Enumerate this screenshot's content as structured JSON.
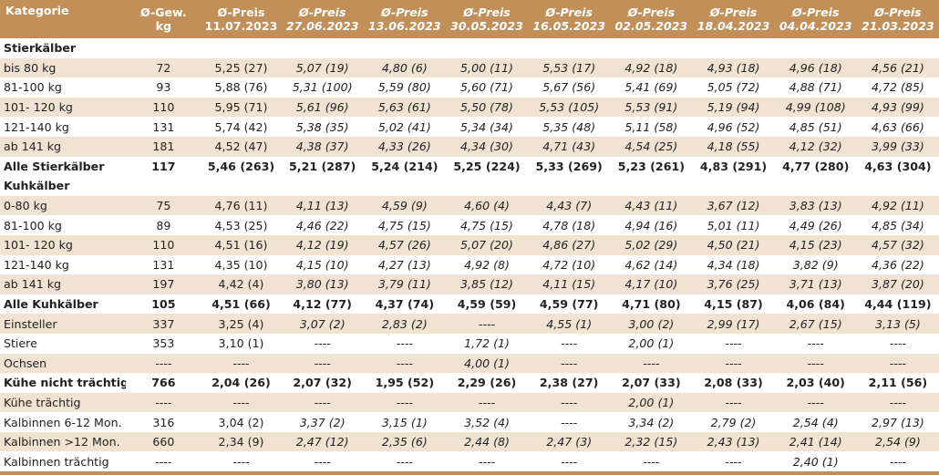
{
  "header": {
    "category": "Kategorie",
    "weight_line1": "Ø-Gew.",
    "weight_line2": "kg",
    "price_label": "Ø-Preis",
    "dates": [
      "11.07.2023",
      "27.06.2023",
      "13.06.2023",
      "30.05.2023",
      "16.05.2023",
      "02.05.2023",
      "18.04.2023",
      "04.04.2023",
      "21.03.2023"
    ]
  },
  "sections": [
    {
      "title": "Stierkälber",
      "rows": [
        {
          "label": "bis 80 kg",
          "weight": "72",
          "prices": [
            "5,25 (27)",
            "5,07 (19)",
            "4,80 (6)",
            "5,00 (11)",
            "5,53 (17)",
            "4,92 (18)",
            "4,93 (18)",
            "4,96 (18)",
            "4,56 (21)"
          ]
        },
        {
          "label": "81-100 kg",
          "weight": "93",
          "prices": [
            "5,88 (76)",
            "5,31 (100)",
            "5,59 (80)",
            "5,60 (71)",
            "5,67 (56)",
            "5,41 (69)",
            "5,05 (72)",
            "4,88 (71)",
            "4,72 (85)"
          ]
        },
        {
          "label": "101- 120 kg",
          "weight": "110",
          "prices": [
            "5,95 (71)",
            "5,61 (96)",
            "5,63 (61)",
            "5,50 (78)",
            "5,53 (105)",
            "5,53 (91)",
            "5,19 (94)",
            "4,99 (108)",
            "4,93 (99)"
          ]
        },
        {
          "label": "121-140 kg",
          "weight": "131",
          "prices": [
            "5,74 (42)",
            "5,38 (35)",
            "5,02 (41)",
            "5,34 (34)",
            "5,35 (48)",
            "5,11 (58)",
            "4,96 (52)",
            "4,85 (51)",
            "4,63 (66)"
          ]
        },
        {
          "label": "ab 141 kg",
          "weight": "181",
          "prices": [
            "4,52 (47)",
            "4,38 (37)",
            "4,33 (26)",
            "4,34 (30)",
            "4,71 (43)",
            "4,54 (25)",
            "4,18 (55)",
            "4,12 (32)",
            "3,99 (33)"
          ]
        }
      ],
      "total": {
        "label": "Alle Stierkälber",
        "weight": "117",
        "prices": [
          "5,46 (263)",
          "5,21 (287)",
          "5,24 (214)",
          "5,25 (224)",
          "5,33 (269)",
          "5,23 (261)",
          "4,83 (291)",
          "4,77 (280)",
          "4,63 (304)"
        ]
      }
    },
    {
      "title": "Kuhkälber",
      "rows": [
        {
          "label": "0-80 kg",
          "weight": "75",
          "prices": [
            "4,76 (11)",
            "4,11 (13)",
            "4,59 (9)",
            "4,60 (4)",
            "4,43 (7)",
            "4,43 (11)",
            "3,67 (12)",
            "3,83 (13)",
            "4,92 (11)"
          ]
        },
        {
          "label": "81-100 kg",
          "weight": "89",
          "prices": [
            "4,53 (25)",
            "4,46 (22)",
            "4,75 (15)",
            "4,75 (15)",
            "4,78 (18)",
            "4,94 (16)",
            "5,01 (11)",
            "4,49 (26)",
            "4,85 (34)"
          ]
        },
        {
          "label": "101- 120 kg",
          "weight": "110",
          "prices": [
            "4,51 (16)",
            "4,12 (19)",
            "4,57 (26)",
            "5,07 (20)",
            "4,86 (27)",
            "5,02 (29)",
            "4,50 (21)",
            "4,15 (23)",
            "4,57 (32)"
          ]
        },
        {
          "label": "121-140 kg",
          "weight": "131",
          "prices": [
            "4,35 (10)",
            "4,15 (10)",
            "4,27 (13)",
            "4,92 (8)",
            "4,72 (10)",
            "4,62 (14)",
            "4,34 (18)",
            "3,82 (9)",
            "4,36 (22)"
          ]
        },
        {
          "label": "ab 141 kg",
          "weight": "197",
          "prices": [
            "4,42 (4)",
            "3,80 (13)",
            "3,79 (11)",
            "3,85 (12)",
            "4,11 (15)",
            "4,17 (10)",
            "3,76 (25)",
            "3,71 (13)",
            "3,87 (20)"
          ]
        }
      ],
      "total": {
        "label": "Alle Kuhkälber",
        "weight": "105",
        "prices": [
          "4,51 (66)",
          "4,12 (77)",
          "4,37 (74)",
          "4,59 (59)",
          "4,59 (77)",
          "4,71 (80)",
          "4,15 (87)",
          "4,06 (84)",
          "4,44 (119)"
        ]
      }
    }
  ],
  "other_rows": [
    {
      "label": "Einsteller",
      "weight": "337",
      "bold": false,
      "prices": [
        "3,25 (4)",
        "3,07 (2)",
        "2,83 (2)",
        "----",
        "4,55 (1)",
        "3,00 (2)",
        "2,99 (17)",
        "2,67 (15)",
        "3,13 (5)"
      ]
    },
    {
      "label": "Stiere",
      "weight": "353",
      "bold": false,
      "prices": [
        "3,10 (1)",
        "----",
        "----",
        "1,72 (1)",
        "----",
        "2,00 (1)",
        "----",
        "----",
        "----"
      ]
    },
    {
      "label": "Ochsen",
      "weight": "----",
      "bold": false,
      "prices": [
        "----",
        "----",
        "----",
        "4,00 (1)",
        "----",
        "----",
        "----",
        "----",
        "----"
      ]
    },
    {
      "label": "Kühe nicht trächtig",
      "weight": "766",
      "bold": true,
      "prices": [
        "2,04 (26)",
        "2,07 (32)",
        "1,95 (52)",
        "2,29 (26)",
        "2,38 (27)",
        "2,07 (33)",
        "2,08 (33)",
        "2,03 (40)",
        "2,11 (56)"
      ]
    },
    {
      "label": "Kühe trächtig",
      "weight": "----",
      "bold": false,
      "prices": [
        "----",
        "----",
        "----",
        "----",
        "----",
        "2,00 (1)",
        "----",
        "----",
        "----"
      ]
    },
    {
      "label": "Kalbinnen 6-12 Mon.",
      "weight": "316",
      "bold": false,
      "prices": [
        "3,04 (2)",
        "3,37 (2)",
        "3,15 (1)",
        "3,52 (4)",
        "----",
        "3,34 (2)",
        "2,79 (2)",
        "2,54 (4)",
        "2,97 (13)"
      ]
    },
    {
      "label": "Kalbinnen >12 Mon.",
      "weight": "660",
      "bold": false,
      "prices": [
        "2,34 (9)",
        "2,47 (12)",
        "2,35 (6)",
        "2,44 (8)",
        "2,47 (3)",
        "2,32 (15)",
        "2,43 (13)",
        "2,41 (14)",
        "2,54 (9)"
      ]
    },
    {
      "label": "Kalbinnen trächtig",
      "weight": "----",
      "bold": false,
      "prices": [
        "----",
        "----",
        "----",
        "----",
        "----",
        "----",
        "----",
        "2,40 (1)",
        "----"
      ]
    }
  ],
  "italic_columns": [
    1,
    2,
    3,
    4,
    5,
    6,
    7,
    8
  ],
  "colors": {
    "header_bg": "#c38f58",
    "stripe": "#f0e3d1"
  }
}
